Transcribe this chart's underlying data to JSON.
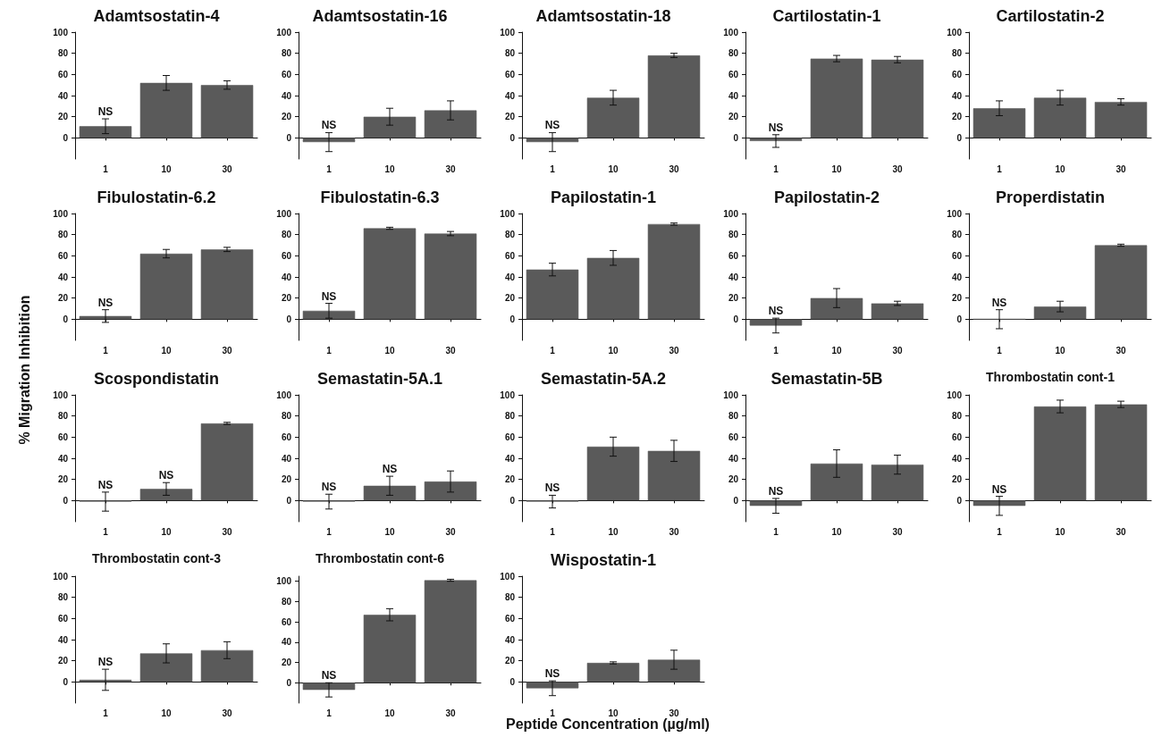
{
  "chart_data": [
    {
      "type": "bar",
      "title": "Adamtsostatin-4",
      "categories": [
        "1",
        "10",
        "30"
      ],
      "values": [
        11,
        52,
        50
      ],
      "errors": [
        7,
        7,
        4
      ],
      "color": "#5a5a5a",
      "ylim": [
        -20,
        100
      ],
      "yticks": [
        0,
        20,
        40,
        60,
        80,
        100
      ],
      "annotations": [
        {
          "text": "NS",
          "x": "1",
          "y": 18
        }
      ]
    },
    {
      "type": "bar",
      "title": "Adamtsostatin-16",
      "categories": [
        "1",
        "10",
        "30"
      ],
      "values": [
        -4,
        20,
        26
      ],
      "errors": [
        9,
        8,
        9
      ],
      "color": "#5a5a5a",
      "ylim": [
        -20,
        100
      ],
      "yticks": [
        0,
        20,
        40,
        60,
        80,
        100
      ],
      "annotations": [
        {
          "text": "NS",
          "x": "1",
          "y": 5
        }
      ]
    },
    {
      "type": "bar",
      "title": "Adamtsostatin-18",
      "categories": [
        "1",
        "10",
        "30"
      ],
      "values": [
        -4,
        38,
        78
      ],
      "errors": [
        9,
        7,
        2
      ],
      "color": "#5a5a5a",
      "ylim": [
        -20,
        100
      ],
      "yticks": [
        0,
        20,
        40,
        60,
        80,
        100
      ],
      "annotations": [
        {
          "text": "NS",
          "x": "1",
          "y": 5
        }
      ]
    },
    {
      "type": "bar",
      "title": "Cartilostatin-1",
      "categories": [
        "1",
        "10",
        "30"
      ],
      "values": [
        -3,
        75,
        74
      ],
      "errors": [
        6,
        3,
        3
      ],
      "color": "#5a5a5a",
      "ylim": [
        -20,
        100
      ],
      "yticks": [
        0,
        20,
        40,
        60,
        80,
        100
      ],
      "annotations": [
        {
          "text": "NS",
          "x": "1",
          "y": 3
        }
      ]
    },
    {
      "type": "bar",
      "title": "Cartilostatin-2",
      "categories": [
        "1",
        "10",
        "30"
      ],
      "values": [
        28,
        38,
        34
      ],
      "errors": [
        7,
        7,
        3
      ],
      "color": "#5a5a5a",
      "ylim": [
        -20,
        100
      ],
      "yticks": [
        0,
        20,
        40,
        60,
        80,
        100
      ]
    },
    {
      "type": "bar",
      "title": "Fibulostatin-6.2",
      "categories": [
        "1",
        "10",
        "30"
      ],
      "values": [
        3,
        62,
        66
      ],
      "errors": [
        6,
        4,
        2
      ],
      "color": "#5a5a5a",
      "ylim": [
        -20,
        100
      ],
      "yticks": [
        0,
        20,
        40,
        60,
        80,
        100
      ],
      "ylabel": "% Migration Inhibition",
      "annotations": [
        {
          "text": "NS",
          "x": "1",
          "y": 9
        }
      ]
    },
    {
      "type": "bar",
      "title": "Fibulostatin-6.3",
      "categories": [
        "1",
        "10",
        "30"
      ],
      "values": [
        8,
        86,
        81
      ],
      "errors": [
        7,
        1,
        2
      ],
      "color": "#5a5a5a",
      "ylim": [
        -20,
        100
      ],
      "yticks": [
        0,
        20,
        40,
        60,
        80,
        100
      ],
      "annotations": [
        {
          "text": "NS",
          "x": "1",
          "y": 15
        }
      ]
    },
    {
      "type": "bar",
      "title": "Papilostatin-1",
      "categories": [
        "1",
        "10",
        "30"
      ],
      "values": [
        47,
        58,
        90
      ],
      "errors": [
        6,
        7,
        1
      ],
      "color": "#5a5a5a",
      "ylim": [
        -20,
        100
      ],
      "yticks": [
        0,
        20,
        40,
        60,
        80,
        100
      ]
    },
    {
      "type": "bar",
      "title": "Papilostatin-2",
      "categories": [
        "1",
        "10",
        "30"
      ],
      "values": [
        -6,
        20,
        15
      ],
      "errors": [
        7,
        9,
        2
      ],
      "color": "#5a5a5a",
      "ylim": [
        -20,
        100
      ],
      "yticks": [
        0,
        20,
        40,
        60,
        80,
        100
      ],
      "annotations": [
        {
          "text": "NS",
          "x": "1",
          "y": 1
        }
      ]
    },
    {
      "type": "bar",
      "title": "Properdistatin",
      "categories": [
        "1",
        "10",
        "30"
      ],
      "values": [
        0,
        12,
        70
      ],
      "errors": [
        9,
        5,
        1
      ],
      "color": "#5a5a5a",
      "ylim": [
        -20,
        100
      ],
      "yticks": [
        0,
        20,
        40,
        60,
        80,
        100
      ],
      "annotations": [
        {
          "text": "NS",
          "x": "1",
          "y": 9
        }
      ]
    },
    {
      "type": "bar",
      "title": "Scospondistatin",
      "categories": [
        "1",
        "10",
        "30"
      ],
      "values": [
        -1,
        11,
        73
      ],
      "errors": [
        9,
        6,
        1
      ],
      "color": "#5a5a5a",
      "ylim": [
        -20,
        100
      ],
      "yticks": [
        0,
        20,
        40,
        60,
        80,
        100
      ],
      "annotations": [
        {
          "text": "NS",
          "x": "1",
          "y": 8
        },
        {
          "text": "NS",
          "x": "10",
          "y": 17
        }
      ]
    },
    {
      "type": "bar",
      "title": "Semastatin-5A.1",
      "categories": [
        "1",
        "10",
        "30"
      ],
      "values": [
        -1,
        14,
        18
      ],
      "errors": [
        7,
        9,
        10
      ],
      "color": "#5a5a5a",
      "ylim": [
        -20,
        100
      ],
      "yticks": [
        0,
        20,
        40,
        60,
        80,
        100
      ],
      "annotations": [
        {
          "text": "NS",
          "x": "1",
          "y": 6
        },
        {
          "text": "NS",
          "x": "10",
          "y": 23
        }
      ]
    },
    {
      "type": "bar",
      "title": "Semastatin-5A.2",
      "categories": [
        "1",
        "10",
        "30"
      ],
      "values": [
        -1,
        51,
        47
      ],
      "errors": [
        6,
        9,
        10
      ],
      "color": "#5a5a5a",
      "ylim": [
        -20,
        100
      ],
      "yticks": [
        0,
        20,
        40,
        60,
        80,
        100
      ],
      "annotations": [
        {
          "text": "NS",
          "x": "1",
          "y": 5
        }
      ]
    },
    {
      "type": "bar",
      "title": "Semastatin-5B",
      "categories": [
        "1",
        "10",
        "30"
      ],
      "values": [
        -5,
        35,
        34
      ],
      "errors": [
        7,
        13,
        9
      ],
      "color": "#5a5a5a",
      "ylim": [
        -20,
        100
      ],
      "yticks": [
        0,
        20,
        40,
        60,
        80,
        100
      ],
      "annotations": [
        {
          "text": "NS",
          "x": "1",
          "y": 2
        }
      ]
    },
    {
      "type": "bar",
      "title": "Thrombostatin cont-1",
      "categories": [
        "1",
        "10",
        "30"
      ],
      "values": [
        -5,
        89,
        91
      ],
      "errors": [
        9,
        6,
        3
      ],
      "color": "#5a5a5a",
      "ylim": [
        -20,
        100
      ],
      "yticks": [
        0,
        20,
        40,
        60,
        80,
        100
      ],
      "annotations": [
        {
          "text": "NS",
          "x": "1",
          "y": 4
        }
      ]
    },
    {
      "type": "bar",
      "title": "Thrombostatin cont-3",
      "categories": [
        "1",
        "10",
        "30"
      ],
      "values": [
        2,
        27,
        30
      ],
      "errors": [
        10,
        9,
        8
      ],
      "color": "#5a5a5a",
      "ylim": [
        -20,
        100
      ],
      "yticks": [
        0,
        20,
        40,
        60,
        80,
        100
      ],
      "annotations": [
        {
          "text": "NS",
          "x": "1",
          "y": 12
        }
      ]
    },
    {
      "type": "bar",
      "title": "Thrombostatin cont-6",
      "categories": [
        "1",
        "10",
        "30"
      ],
      "values": [
        -7,
        67,
        101
      ],
      "errors": [
        7,
        6,
        1
      ],
      "color": "#5a5a5a",
      "ylim": [
        -20,
        105
      ],
      "yticks": [
        0,
        20,
        40,
        60,
        80,
        100
      ],
      "annotations": [
        {
          "text": "NS",
          "x": "1",
          "y": 0
        }
      ]
    },
    {
      "type": "bar",
      "title": "Wispostatin-1",
      "categories": [
        "1",
        "10",
        "30"
      ],
      "values": [
        -6,
        18,
        21
      ],
      "errors": [
        7,
        1,
        9
      ],
      "color": "#5a5a5a",
      "ylim": [
        -20,
        100
      ],
      "yticks": [
        0,
        20,
        40,
        60,
        80,
        100
      ],
      "xlabel": "Peptide Concentration (µg/ml)",
      "annotations": [
        {
          "text": "NS",
          "x": "1",
          "y": 1
        }
      ]
    }
  ]
}
